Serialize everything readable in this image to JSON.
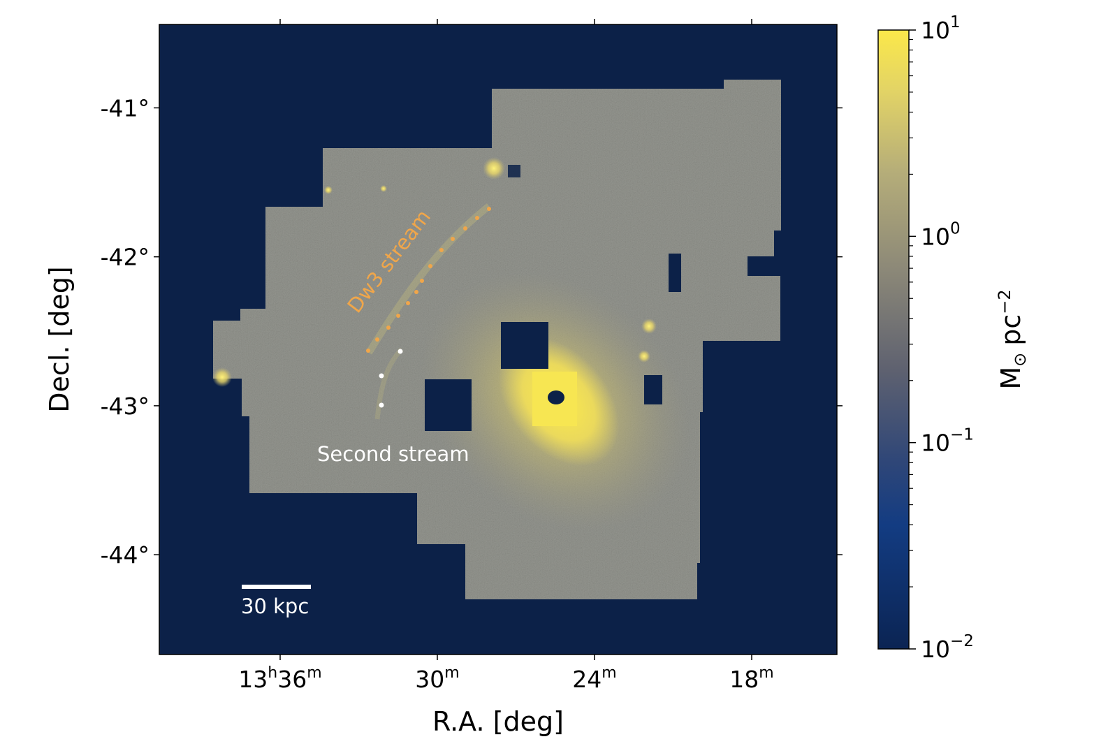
{
  "chart_data": {
    "type": "heatmap",
    "xlabel": "R.A. [deg]",
    "ylabel": "Decl. [deg]",
    "x_ticks": [
      {
        "base": "13",
        "h": "h",
        "m_val": "36",
        "m": "m",
        "ra_min": 36
      },
      {
        "base": "30",
        "m": "m",
        "ra_min": 30
      },
      {
        "base": "24",
        "m": "m",
        "ra_min": 24
      },
      {
        "base": "18",
        "m": "m",
        "ra_min": 18
      }
    ],
    "y_ticks": [
      {
        "label": "-41°",
        "dec": -41
      },
      {
        "label": "-42°",
        "dec": -42
      },
      {
        "label": "-43°",
        "dec": -43
      },
      {
        "label": "-44°",
        "dec": -44
      }
    ],
    "ylim": [
      -44.67,
      -40.44
    ],
    "colorbar": {
      "label_main": "M",
      "label_sub": "⊙",
      "label_unit": "pc",
      "label_exp": "−2",
      "scale": "log",
      "range": [
        0.01,
        10
      ],
      "ticks": [
        {
          "base": "10",
          "exp": "1",
          "value": 10
        },
        {
          "base": "10",
          "exp": "0",
          "value": 1
        },
        {
          "base": "10",
          "exp": "−1",
          "value": 0.1
        },
        {
          "base": "10",
          "exp": "−2",
          "value": 0.01
        }
      ],
      "colors": [
        "#0b2453",
        "#133c82",
        "#4f566c",
        "#7f7f76",
        "#aea77a",
        "#ddd16b",
        "#f8e74e"
      ]
    },
    "background_color": "#0c2148",
    "annotations": [
      {
        "text": "Dw3 stream",
        "color": "#f0a64a"
      },
      {
        "text": "Second stream",
        "color": "#ffffff"
      }
    ],
    "scale_bar": {
      "text": "30 kpc",
      "color": "#ffffff"
    }
  }
}
